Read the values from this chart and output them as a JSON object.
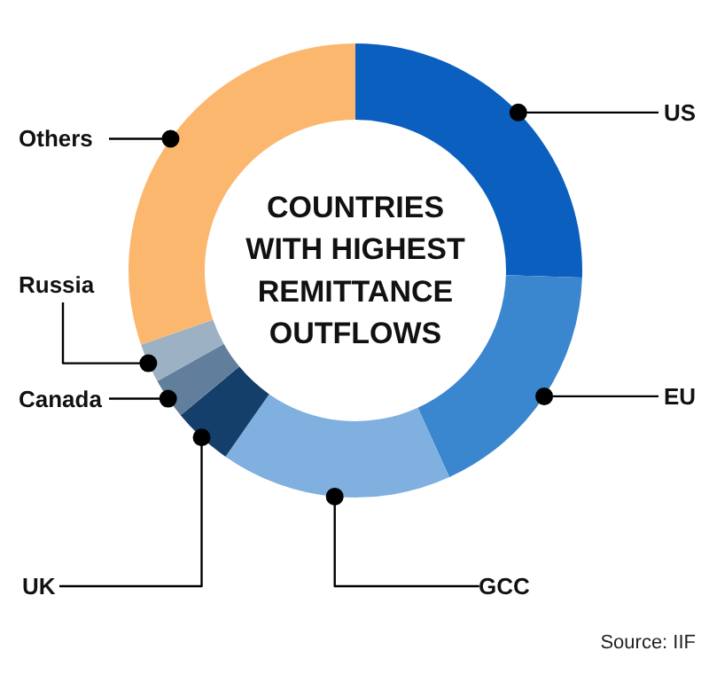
{
  "chart_data": {
    "type": "donut",
    "title": "COUNTRIES\nWITH HIGHEST\nREMITTANCE\nOUTFLOWS",
    "categories": [
      "US",
      "EU",
      "GCC",
      "UK",
      "Canada",
      "Russia",
      "Others"
    ],
    "values": [
      25.5,
      17.7,
      16.5,
      4.3,
      2.9,
      2.8,
      30.3
    ],
    "colors": [
      "#0a5fbf",
      "#3a86cf",
      "#7fb0e0",
      "#153f6b",
      "#617f9c",
      "#9db1c5",
      "#fcb76f"
    ],
    "annotations": [
      "Source: IIF"
    ]
  }
}
